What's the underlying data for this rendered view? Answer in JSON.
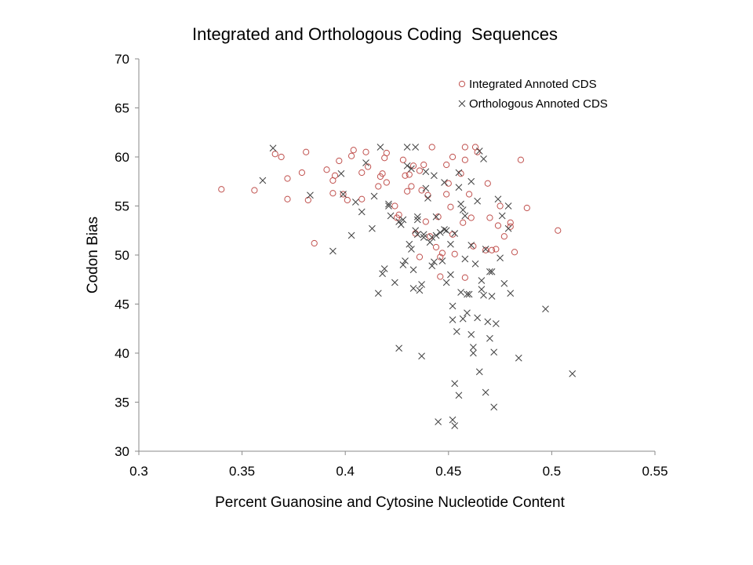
{
  "chart_data": {
    "type": "scatter",
    "title": "Integrated and Orthologous Coding  Sequences",
    "xlabel": "Percent Guanosine and Cytosine Nucleotide Content",
    "ylabel": "Codon Bias",
    "xlim": [
      0.3,
      0.55
    ],
    "ylim": [
      30,
      70
    ],
    "x_ticks": [
      "0.3",
      "0.35",
      "0.4",
      "0.45",
      "0.5",
      "0.55"
    ],
    "y_ticks": [
      "30",
      "35",
      "40",
      "45",
      "50",
      "55",
      "60",
      "65",
      "70"
    ],
    "grid": false,
    "legend_position": "top-right",
    "series": [
      {
        "name": "Integrated Annoted CDS",
        "marker": "circle",
        "color": "#c0504d",
        "points": [
          [
            0.34,
            56.7
          ],
          [
            0.356,
            56.6
          ],
          [
            0.366,
            60.3
          ],
          [
            0.369,
            60.0
          ],
          [
            0.372,
            57.8
          ],
          [
            0.372,
            55.7
          ],
          [
            0.379,
            58.4
          ],
          [
            0.381,
            60.5
          ],
          [
            0.382,
            55.6
          ],
          [
            0.385,
            51.2
          ],
          [
            0.391,
            58.7
          ],
          [
            0.394,
            57.6
          ],
          [
            0.394,
            56.3
          ],
          [
            0.395,
            58.1
          ],
          [
            0.397,
            59.6
          ],
          [
            0.399,
            56.2
          ],
          [
            0.401,
            55.6
          ],
          [
            0.403,
            60.1
          ],
          [
            0.404,
            60.7
          ],
          [
            0.408,
            58.4
          ],
          [
            0.408,
            55.7
          ],
          [
            0.41,
            60.5
          ],
          [
            0.411,
            59.0
          ],
          [
            0.416,
            57.0
          ],
          [
            0.417,
            58.0
          ],
          [
            0.418,
            58.3
          ],
          [
            0.419,
            59.9
          ],
          [
            0.42,
            60.4
          ],
          [
            0.42,
            57.4
          ],
          [
            0.424,
            55.0
          ],
          [
            0.425,
            53.8
          ],
          [
            0.426,
            54.1
          ],
          [
            0.428,
            59.7
          ],
          [
            0.429,
            58.1
          ],
          [
            0.43,
            56.5
          ],
          [
            0.431,
            58.2
          ],
          [
            0.432,
            57.0
          ],
          [
            0.433,
            59.1
          ],
          [
            0.434,
            52.2
          ],
          [
            0.436,
            49.8
          ],
          [
            0.436,
            58.6
          ],
          [
            0.437,
            56.6
          ],
          [
            0.438,
            59.2
          ],
          [
            0.439,
            53.4
          ],
          [
            0.44,
            56.1
          ],
          [
            0.441,
            51.9
          ],
          [
            0.442,
            61.0
          ],
          [
            0.444,
            50.8
          ],
          [
            0.445,
            53.9
          ],
          [
            0.446,
            49.8
          ],
          [
            0.446,
            47.8
          ],
          [
            0.447,
            50.2
          ],
          [
            0.449,
            56.2
          ],
          [
            0.449,
            59.2
          ],
          [
            0.45,
            57.3
          ],
          [
            0.451,
            54.9
          ],
          [
            0.452,
            60.0
          ],
          [
            0.452,
            52.1
          ],
          [
            0.453,
            50.1
          ],
          [
            0.456,
            58.3
          ],
          [
            0.457,
            53.3
          ],
          [
            0.458,
            61.0
          ],
          [
            0.458,
            59.7
          ],
          [
            0.458,
            47.7
          ],
          [
            0.46,
            56.2
          ],
          [
            0.461,
            53.8
          ],
          [
            0.462,
            50.9
          ],
          [
            0.463,
            61.0
          ],
          [
            0.464,
            60.5
          ],
          [
            0.468,
            50.5
          ],
          [
            0.469,
            57.3
          ],
          [
            0.47,
            53.8
          ],
          [
            0.471,
            50.5
          ],
          [
            0.473,
            50.6
          ],
          [
            0.474,
            53.0
          ],
          [
            0.475,
            55.0
          ],
          [
            0.477,
            51.9
          ],
          [
            0.48,
            53.3
          ],
          [
            0.48,
            52.9
          ],
          [
            0.482,
            50.3
          ],
          [
            0.485,
            59.7
          ],
          [
            0.488,
            54.8
          ],
          [
            0.503,
            52.5
          ]
        ]
      },
      {
        "name": "Orthologous Annoted CDS",
        "marker": "x",
        "color": "#404040",
        "points": [
          [
            0.36,
            57.6
          ],
          [
            0.365,
            60.9
          ],
          [
            0.383,
            56.1
          ],
          [
            0.394,
            50.4
          ],
          [
            0.398,
            58.3
          ],
          [
            0.399,
            56.2
          ],
          [
            0.403,
            52.0
          ],
          [
            0.405,
            55.4
          ],
          [
            0.408,
            54.4
          ],
          [
            0.41,
            59.4
          ],
          [
            0.413,
            52.7
          ],
          [
            0.414,
            56.0
          ],
          [
            0.416,
            46.1
          ],
          [
            0.417,
            61.0
          ],
          [
            0.418,
            48.1
          ],
          [
            0.419,
            48.6
          ],
          [
            0.421,
            55.2
          ],
          [
            0.421,
            55.0
          ],
          [
            0.422,
            54.0
          ],
          [
            0.424,
            47.2
          ],
          [
            0.426,
            53.4
          ],
          [
            0.426,
            40.5
          ],
          [
            0.427,
            53.1
          ],
          [
            0.428,
            53.6
          ],
          [
            0.428,
            49.0
          ],
          [
            0.429,
            49.4
          ],
          [
            0.43,
            61.0
          ],
          [
            0.43,
            59.1
          ],
          [
            0.431,
            51.1
          ],
          [
            0.432,
            50.6
          ],
          [
            0.432,
            58.8
          ],
          [
            0.433,
            48.5
          ],
          [
            0.433,
            46.6
          ],
          [
            0.434,
            61.0
          ],
          [
            0.434,
            52.5
          ],
          [
            0.435,
            52.1
          ],
          [
            0.435,
            53.9
          ],
          [
            0.435,
            53.6
          ],
          [
            0.436,
            46.4
          ],
          [
            0.437,
            47.0
          ],
          [
            0.437,
            39.7
          ],
          [
            0.438,
            51.8
          ],
          [
            0.438,
            52.1
          ],
          [
            0.439,
            58.5
          ],
          [
            0.439,
            56.8
          ],
          [
            0.44,
            55.8
          ],
          [
            0.441,
            51.3
          ],
          [
            0.442,
            51.8
          ],
          [
            0.442,
            48.9
          ],
          [
            0.443,
            49.3
          ],
          [
            0.443,
            58.1
          ],
          [
            0.444,
            53.9
          ],
          [
            0.444,
            52.0
          ],
          [
            0.445,
            33.0
          ],
          [
            0.446,
            52.3
          ],
          [
            0.447,
            49.4
          ],
          [
            0.448,
            57.4
          ],
          [
            0.448,
            52.6
          ],
          [
            0.449,
            52.5
          ],
          [
            0.449,
            47.2
          ],
          [
            0.451,
            48.0
          ],
          [
            0.451,
            51.1
          ],
          [
            0.452,
            33.2
          ],
          [
            0.452,
            44.8
          ],
          [
            0.452,
            43.4
          ],
          [
            0.453,
            32.6
          ],
          [
            0.453,
            36.9
          ],
          [
            0.453,
            52.2
          ],
          [
            0.454,
            42.2
          ],
          [
            0.455,
            35.7
          ],
          [
            0.455,
            58.4
          ],
          [
            0.455,
            56.9
          ],
          [
            0.456,
            55.2
          ],
          [
            0.456,
            46.2
          ],
          [
            0.457,
            43.5
          ],
          [
            0.457,
            54.6
          ],
          [
            0.458,
            54.0
          ],
          [
            0.458,
            49.6
          ],
          [
            0.459,
            46.0
          ],
          [
            0.459,
            44.1
          ],
          [
            0.46,
            46.0
          ],
          [
            0.461,
            41.9
          ],
          [
            0.461,
            51.0
          ],
          [
            0.461,
            57.5
          ],
          [
            0.462,
            40.0
          ],
          [
            0.462,
            40.6
          ],
          [
            0.463,
            49.1
          ],
          [
            0.464,
            55.5
          ],
          [
            0.464,
            43.6
          ],
          [
            0.465,
            38.1
          ],
          [
            0.465,
            60.6
          ],
          [
            0.466,
            47.4
          ],
          [
            0.466,
            46.5
          ],
          [
            0.467,
            45.9
          ],
          [
            0.467,
            59.8
          ],
          [
            0.468,
            50.6
          ],
          [
            0.468,
            36.0
          ],
          [
            0.469,
            43.2
          ],
          [
            0.47,
            48.3
          ],
          [
            0.47,
            41.5
          ],
          [
            0.471,
            48.3
          ],
          [
            0.471,
            45.8
          ],
          [
            0.472,
            34.5
          ],
          [
            0.472,
            40.1
          ],
          [
            0.473,
            43.0
          ],
          [
            0.474,
            55.7
          ],
          [
            0.475,
            49.7
          ],
          [
            0.476,
            54.0
          ],
          [
            0.477,
            47.1
          ],
          [
            0.479,
            55.0
          ],
          [
            0.479,
            52.7
          ],
          [
            0.48,
            46.1
          ],
          [
            0.484,
            39.5
          ],
          [
            0.497,
            44.5
          ],
          [
            0.51,
            37.9
          ]
        ]
      }
    ]
  }
}
